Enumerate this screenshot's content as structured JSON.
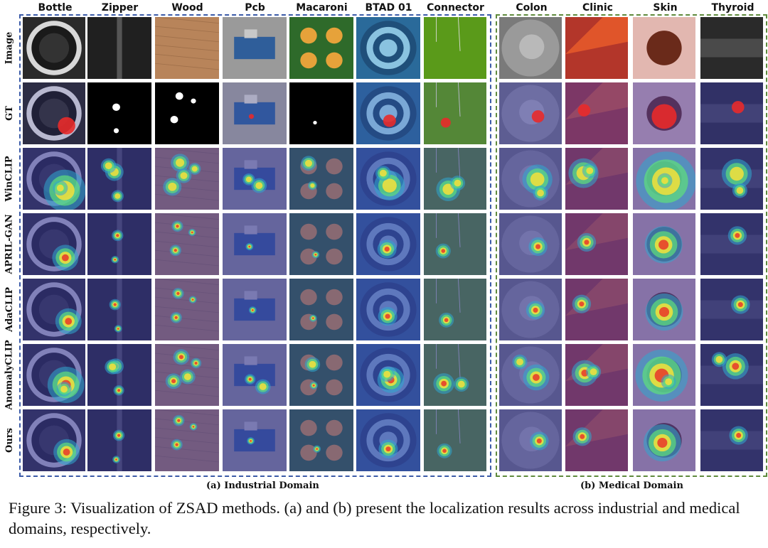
{
  "columns": {
    "industrial": [
      "Bottle",
      "Zipper",
      "Wood",
      "Pcb",
      "Macaroni",
      "BTAD 01",
      "Connector"
    ],
    "medical": [
      "Colon",
      "Clinic",
      "Skin",
      "Thyroid"
    ]
  },
  "rows": [
    "Image",
    "GT",
    "WinCLIP",
    "APRIL-GAN",
    "AdaCLIP",
    "AnomalyCLIP",
    "Ours"
  ],
  "domain_captions": {
    "industrial": "(a) Industrial Domain",
    "medical": "(b) Medical Domain"
  },
  "frame_colors": {
    "industrial": "#3b5ba8",
    "medical": "#5f8a3c"
  },
  "caption": "Figure 3: Visualization of ZSAD methods. (a) and (b) present the localization results across industrial and medical domains, respectively."
}
